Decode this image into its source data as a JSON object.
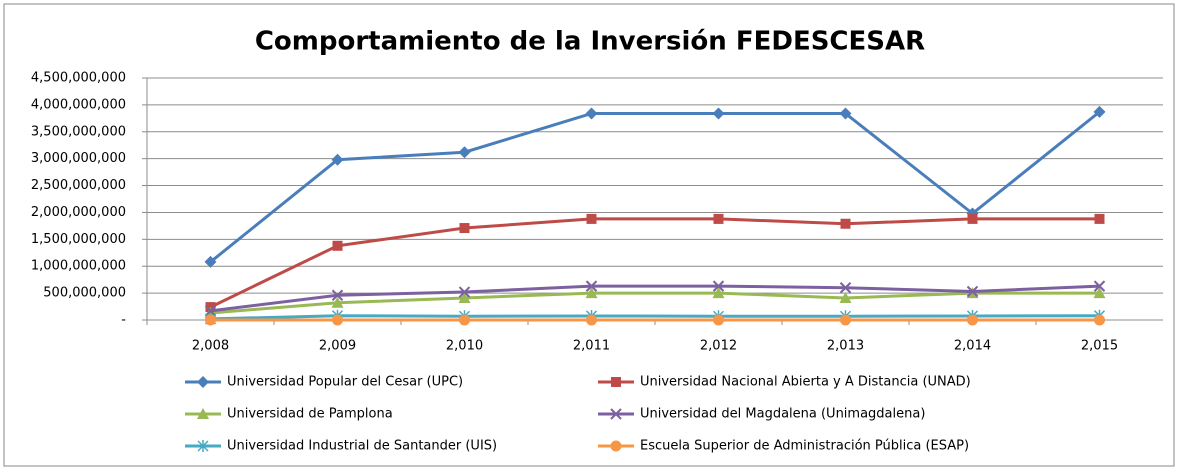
{
  "chart_data": {
    "type": "line",
    "title": "Comportamiento de la Inversión FEDESCESAR",
    "categories": [
      "2,008",
      "2,009",
      "2,010",
      "2,011",
      "2,012",
      "2,013",
      "2,014",
      "2,015"
    ],
    "series": [
      {
        "name": "Universidad Popular del Cesar (UPC)",
        "color": "#4a7ebb",
        "marker": "diamond",
        "values": [
          1080000000,
          2980000000,
          3120000000,
          3840000000,
          3840000000,
          3840000000,
          1980000000,
          3870000000
        ]
      },
      {
        "name": "Universidad Nacional Abierta y A Distancia (UNAD)",
        "color": "#be4b48",
        "marker": "square",
        "values": [
          240000000,
          1380000000,
          1710000000,
          1880000000,
          1880000000,
          1790000000,
          1880000000,
          1880000000
        ]
      },
      {
        "name": "Universidad de Pamplona",
        "color": "#98b954",
        "marker": "triangle",
        "values": [
          130000000,
          320000000,
          410000000,
          500000000,
          500000000,
          410000000,
          500000000,
          500000000
        ]
      },
      {
        "name": "Universidad del Magdalena (Unimagdalena)",
        "color": "#7d60a0",
        "marker": "x",
        "values": [
          170000000,
          460000000,
          520000000,
          630000000,
          630000000,
          600000000,
          530000000,
          630000000
        ]
      },
      {
        "name": "Universidad Industrial de Santander (UIS)",
        "color": "#46aac5",
        "marker": "star",
        "values": [
          20000000,
          80000000,
          70000000,
          75000000,
          70000000,
          70000000,
          75000000,
          80000000
        ]
      },
      {
        "name": "Escuela Superior de Administración Pública (ESAP)",
        "color": "#f79646",
        "marker": "circle",
        "values": [
          0,
          0,
          0,
          0,
          0,
          0,
          0,
          0
        ]
      }
    ],
    "ylim": [
      0,
      4500000000
    ],
    "yticks": [
      {
        "value": 0,
        "label": "-"
      },
      {
        "value": 500000000,
        "label": "500,000,000"
      },
      {
        "value": 1000000000,
        "label": "1,000,000,000"
      },
      {
        "value": 1500000000,
        "label": "1,500,000,000"
      },
      {
        "value": 2000000000,
        "label": "2,000,000,000"
      },
      {
        "value": 2500000000,
        "label": "2,500,000,000"
      },
      {
        "value": 3000000000,
        "label": "3,000,000,000"
      },
      {
        "value": 3500000000,
        "label": "3,500,000,000"
      },
      {
        "value": 4000000000,
        "label": "4,000,000,000"
      },
      {
        "value": 4500000000,
        "label": "4,500,000,000"
      }
    ],
    "grid": true,
    "legend": "bottom"
  }
}
